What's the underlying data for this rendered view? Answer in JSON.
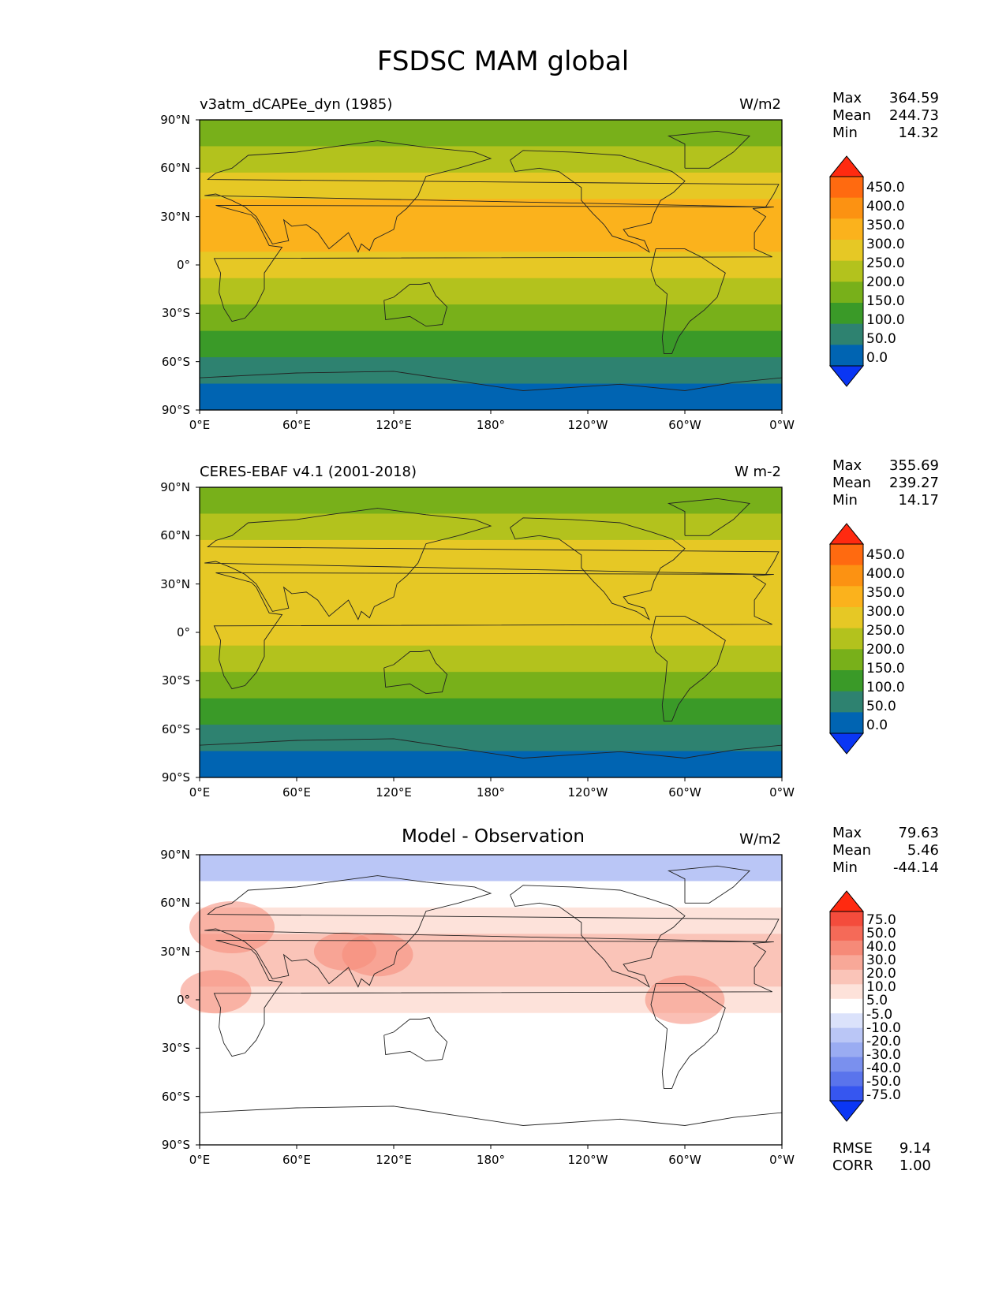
{
  "title": "FSDSC MAM global",
  "lat_ticks": [
    "90°N",
    "60°N",
    "30°N",
    "0°",
    "30°S",
    "60°S",
    "90°S"
  ],
  "lon_ticks": [
    "0°E",
    "60°E",
    "120°E",
    "180°",
    "120°W",
    "60°W",
    "0°W"
  ],
  "panels": [
    {
      "subtitle": "v3atm_dCAPEe_dyn (1985)",
      "units": "W/m2",
      "stats": {
        "max_label": "Max",
        "max": "364.59",
        "mean_label": "Mean",
        "mean": "244.73",
        "min_label": "Min",
        "min": "14.32"
      },
      "colorbar": {
        "labels": [
          "450.0",
          "400.0",
          "350.0",
          "300.0",
          "250.0",
          "200.0",
          "150.0",
          "100.0",
          "50.0",
          "0.0"
        ],
        "colors": [
          "#ff2a10",
          "#ff6a10",
          "#fc9212",
          "#fbb21c",
          "#e6c825",
          "#b3c21d",
          "#78b01a",
          "#3a9a28",
          "#2e8270",
          "#0064b2",
          "#0a36f4"
        ]
      }
    },
    {
      "subtitle": "CERES-EBAF v4.1 (2001-2018)",
      "units": "W m-2",
      "stats": {
        "max_label": "Max",
        "max": "355.69",
        "mean_label": "Mean",
        "mean": "239.27",
        "min_label": "Min",
        "min": "14.17"
      },
      "colorbar": {
        "labels": [
          "450.0",
          "400.0",
          "350.0",
          "300.0",
          "250.0",
          "200.0",
          "150.0",
          "100.0",
          "50.0",
          "0.0"
        ],
        "colors": [
          "#ff2a10",
          "#ff6a10",
          "#fc9212",
          "#fbb21c",
          "#e6c825",
          "#b3c21d",
          "#78b01a",
          "#3a9a28",
          "#2e8270",
          "#0064b2",
          "#0a36f4"
        ]
      }
    },
    {
      "subtitle": "Model - Observation",
      "units": "W/m2",
      "stats": {
        "max_label": "Max",
        "max": "79.63",
        "mean_label": "Mean",
        "mean": "5.46",
        "min_label": "Min",
        "min": "-44.14"
      },
      "colorbar": {
        "labels": [
          "75.0",
          "50.0",
          "40.0",
          "30.0",
          "20.0",
          "10.0",
          "5.0",
          "-5.0",
          "-10.0",
          "-20.0",
          "-30.0",
          "-40.0",
          "-50.0",
          "-75.0"
        ],
        "colors": [
          "#ff2a10",
          "#f44c3c",
          "#f56a58",
          "#f68a78",
          "#f8a898",
          "#fac4b8",
          "#fde2da",
          "#ffffff",
          "#dbe2fb",
          "#bac6f6",
          "#9aacf2",
          "#7a90ee",
          "#5a74ec",
          "#3656f0",
          "#0a36f4"
        ]
      },
      "rmse_label": "RMSE",
      "rmse": "9.14",
      "corr_label": "CORR",
      "corr": "1.00"
    }
  ],
  "zonal_bands": {
    "model": [
      "#78b01a",
      "#b3c21d",
      "#e6c825",
      "#fbb21c",
      "#fbb21c",
      "#e6c825",
      "#b3c21d",
      "#78b01a",
      "#3a9a28",
      "#2e8270",
      "#0064b2"
    ],
    "obs": [
      "#78b01a",
      "#b3c21d",
      "#e6c825",
      "#e6c825",
      "#e6c825",
      "#e6c825",
      "#b3c21d",
      "#78b01a",
      "#3a9a28",
      "#2e8270",
      "#0064b2"
    ],
    "diff": [
      "#bac6f6",
      "#ffffff",
      "#fde2da",
      "#fac4b8",
      "#fac4b8",
      "#fde2da",
      "#ffffff",
      "#ffffff",
      "#ffffff",
      "#ffffff",
      "#ffffff"
    ]
  }
}
